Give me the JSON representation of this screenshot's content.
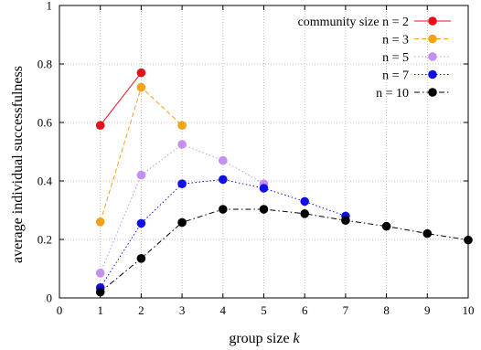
{
  "chart_data": {
    "type": "line",
    "xlabel": "group size",
    "xlabel_var": "k",
    "ylabel": "average individual successfulness",
    "xlim": [
      0,
      10
    ],
    "ylim": [
      0,
      1
    ],
    "xticks": [
      "0",
      "1",
      "2",
      "3",
      "4",
      "5",
      "6",
      "7",
      "8",
      "9",
      "10"
    ],
    "yticks": [
      "0",
      "0.2",
      "0.4",
      "0.6",
      "0.8",
      "1"
    ],
    "grid": true,
    "legend_position": "top-right",
    "series": [
      {
        "name": "community size n = 2",
        "color": "#e8111a",
        "dash": "solid",
        "x": [
          1,
          2
        ],
        "y": [
          0.59,
          0.77
        ]
      },
      {
        "name": "n = 3",
        "color": "#f5a21b",
        "dash": "dashed",
        "x": [
          1,
          2,
          3
        ],
        "y": [
          0.26,
          0.72,
          0.59
        ]
      },
      {
        "name": "n = 5",
        "color": "#c58ff2",
        "dash": "dotted",
        "x": [
          1,
          2,
          3,
          4,
          5
        ],
        "y": [
          0.085,
          0.42,
          0.525,
          0.47,
          0.39
        ]
      },
      {
        "name": "n = 7",
        "color": "#1010e0",
        "dash": "dotted",
        "x": [
          1,
          2,
          3,
          4,
          5,
          6,
          7
        ],
        "y": [
          0.035,
          0.255,
          0.39,
          0.405,
          0.375,
          0.33,
          0.28
        ]
      },
      {
        "name": "n = 10",
        "color": "#000000",
        "dash": "dashdot",
        "x": [
          1,
          2,
          3,
          4,
          5,
          6,
          7,
          8,
          9,
          10
        ],
        "y": [
          0.02,
          0.135,
          0.258,
          0.303,
          0.303,
          0.288,
          0.265,
          0.245,
          0.22,
          0.198
        ]
      }
    ]
  }
}
